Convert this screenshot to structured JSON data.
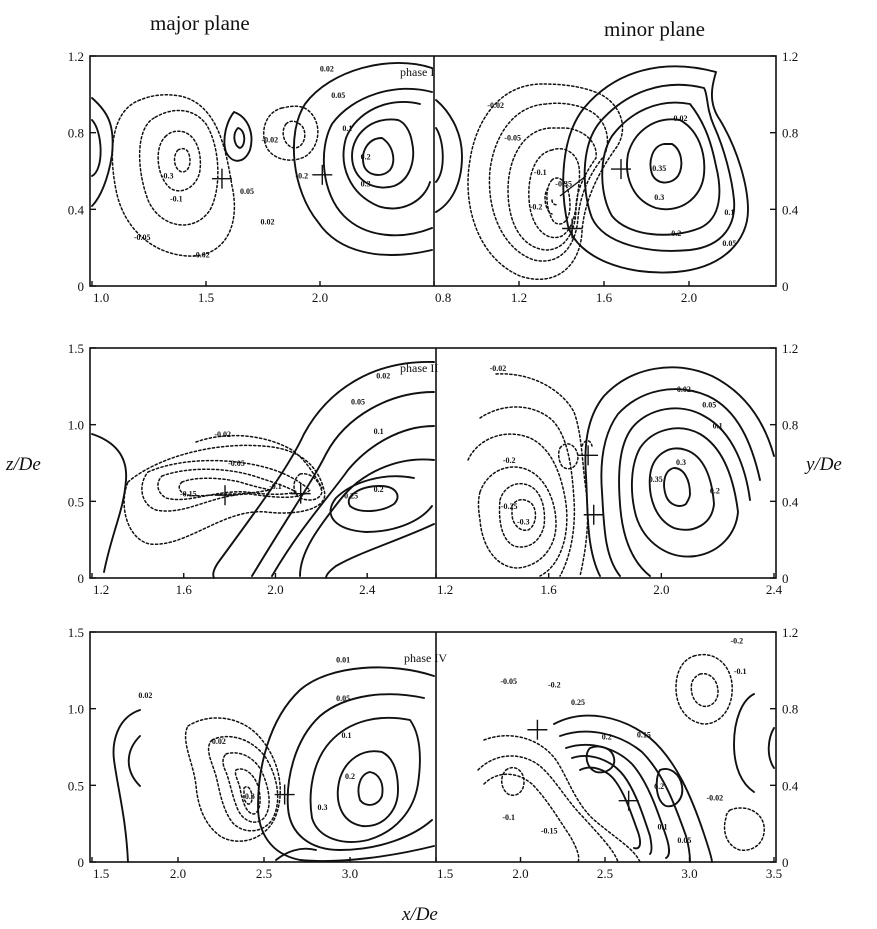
{
  "column_titles": {
    "left": "major plane",
    "right": "minor plane"
  },
  "axis_labels": {
    "x": "x/De",
    "z": "z/De",
    "y": "y/De"
  },
  "chart_data": [
    {
      "type": "contour",
      "panel": "phase I",
      "title": "phase I",
      "major": {
        "xlabel": "x/De",
        "ylabel": "z/De",
        "xlim": [
          1.0,
          2.5
        ],
        "ylim": [
          0,
          1.2
        ],
        "xticks": [
          "1.0",
          "1.5",
          "2.0"
        ],
        "yticks": [
          "0",
          "0.4",
          "0.8",
          "1.2"
        ],
        "contour_labels": [
          {
            "text": "0.02",
            "x": 2.03,
            "y": 1.12
          },
          {
            "text": "0.05",
            "x": 2.08,
            "y": 0.98
          },
          {
            "text": "0.1",
            "x": 2.12,
            "y": 0.81
          },
          {
            "text": "0.2",
            "x": 2.2,
            "y": 0.66
          },
          {
            "text": "0.3",
            "x": 2.2,
            "y": 0.52
          },
          {
            "text": "0.05",
            "x": 1.68,
            "y": 0.48
          },
          {
            "text": "0.02",
            "x": 1.77,
            "y": 0.32
          },
          {
            "text": "-0.3",
            "x": 1.33,
            "y": 0.56
          },
          {
            "text": "-0.1",
            "x": 1.37,
            "y": 0.44
          },
          {
            "text": "-0.05",
            "x": 1.22,
            "y": 0.24
          },
          {
            "text": "-0.02",
            "x": 1.48,
            "y": 0.15
          },
          {
            "text": "-0.02",
            "x": 1.78,
            "y": 0.75
          },
          {
            "text": "-0.2",
            "x": 1.92,
            "y": 0.56
          }
        ],
        "critical_points": [
          {
            "x": 1.57,
            "y": 0.56
          },
          {
            "x": 2.01,
            "y": 0.58
          }
        ]
      },
      "minor": {
        "xlabel": "x/De",
        "ylabel": "y/De",
        "xlim": [
          0.8,
          2.4
        ],
        "ylim": [
          0,
          1.2
        ],
        "xticks": [
          "0.8",
          "1.2",
          "1.6",
          "2.0"
        ],
        "yticks": [
          "0",
          "0.4",
          "0.8",
          "1.2"
        ],
        "contour_labels": [
          {
            "text": "-0.02",
            "x": 1.09,
            "y": 0.93
          },
          {
            "text": "-0.05",
            "x": 1.17,
            "y": 0.76
          },
          {
            "text": "-0.1",
            "x": 1.3,
            "y": 0.58
          },
          {
            "text": "-0.35",
            "x": 1.41,
            "y": 0.52
          },
          {
            "text": "-0.2",
            "x": 1.28,
            "y": 0.4
          },
          {
            "text": "0.02",
            "x": 1.96,
            "y": 0.86
          },
          {
            "text": "0.35",
            "x": 1.86,
            "y": 0.6
          },
          {
            "text": "0.3",
            "x": 1.86,
            "y": 0.45
          },
          {
            "text": "0.1",
            "x": 2.19,
            "y": 0.37
          },
          {
            "text": "0.2",
            "x": 1.94,
            "y": 0.26
          },
          {
            "text": "0.05",
            "x": 2.19,
            "y": 0.21
          }
        ],
        "critical_points": [
          {
            "x": 1.68,
            "y": 0.61
          },
          {
            "x": 1.45,
            "y": 0.3
          }
        ]
      }
    },
    {
      "type": "contour",
      "panel": "phase II",
      "title": "phase II",
      "major": {
        "xlabel": "x/De",
        "ylabel": "z/De",
        "xlim": [
          1.2,
          2.7
        ],
        "ylim": [
          0,
          1.5
        ],
        "xticks": [
          "1.2",
          "1.6",
          "2.0",
          "2.4"
        ],
        "yticks": [
          "0",
          "0.5",
          "1.0",
          "1.5"
        ],
        "contour_labels": [
          {
            "text": "0.02",
            "x": 2.47,
            "y": 1.3
          },
          {
            "text": "0.05",
            "x": 2.36,
            "y": 1.13
          },
          {
            "text": "0.1",
            "x": 2.45,
            "y": 0.94
          },
          {
            "text": "0.2",
            "x": 2.45,
            "y": 0.56
          },
          {
            "text": "0.25",
            "x": 2.33,
            "y": 0.52
          },
          {
            "text": "-0.02",
            "x": 1.77,
            "y": 0.92
          },
          {
            "text": "-0.05",
            "x": 1.83,
            "y": 0.73
          },
          {
            "text": "-0.1",
            "x": 2.0,
            "y": 0.58
          },
          {
            "text": "-0.15",
            "x": 1.62,
            "y": 0.53
          }
        ],
        "critical_points": [
          {
            "x": 1.78,
            "y": 0.54
          },
          {
            "x": 2.11,
            "y": 0.55
          }
        ]
      },
      "minor": {
        "xlabel": "x/De",
        "ylabel": "y/De",
        "xlim": [
          1.2,
          2.4
        ],
        "ylim": [
          0,
          1.2
        ],
        "xticks": [
          "1.2",
          "1.6",
          "2.0",
          "2.4"
        ],
        "yticks": [
          "0",
          "0.4",
          "0.8",
          "1.2"
        ],
        "contour_labels": [
          {
            "text": "-0.02",
            "x": 1.42,
            "y": 1.08
          },
          {
            "text": "0.02",
            "x": 2.08,
            "y": 0.97
          },
          {
            "text": "0.05",
            "x": 2.17,
            "y": 0.89
          },
          {
            "text": "0.1",
            "x": 2.2,
            "y": 0.78
          },
          {
            "text": "-0.2",
            "x": 1.46,
            "y": 0.6
          },
          {
            "text": "0.35",
            "x": 1.98,
            "y": 0.5
          },
          {
            "text": "0.3",
            "x": 2.07,
            "y": 0.59
          },
          {
            "text": "0.2",
            "x": 2.19,
            "y": 0.44
          },
          {
            "text": "-0.25",
            "x": 1.46,
            "y": 0.36
          },
          {
            "text": "-0.3",
            "x": 1.51,
            "y": 0.28
          }
        ],
        "critical_points": [
          {
            "x": 1.74,
            "y": 0.64
          },
          {
            "x": 1.76,
            "y": 0.33
          }
        ]
      }
    },
    {
      "type": "contour",
      "panel": "phase IV",
      "title": "phase IV",
      "major": {
        "xlabel": "x/De",
        "ylabel": "z/De",
        "xlim": [
          1.5,
          3.5
        ],
        "ylim": [
          0,
          1.5
        ],
        "xticks": [
          "1.5",
          "2.0",
          "2.5",
          "3.0"
        ],
        "yticks": [
          "0",
          "0.5",
          "1.0",
          "1.5"
        ],
        "contour_labels": [
          {
            "text": "0.02",
            "x": 1.81,
            "y": 1.07
          },
          {
            "text": "0.01",
            "x": 2.96,
            "y": 1.3
          },
          {
            "text": "0.05",
            "x": 2.96,
            "y": 1.05
          },
          {
            "text": "0.1",
            "x": 2.98,
            "y": 0.81
          },
          {
            "text": "-0.02",
            "x": 2.23,
            "y": 0.77
          },
          {
            "text": "0.2",
            "x": 3.0,
            "y": 0.54
          },
          {
            "text": "-0.3",
            "x": 2.41,
            "y": 0.41
          },
          {
            "text": "0.3",
            "x": 2.84,
            "y": 0.34
          }
        ],
        "critical_points": [
          {
            "x": 2.62,
            "y": 0.44
          }
        ]
      },
      "minor": {
        "xlabel": "x/De",
        "ylabel": "y/De",
        "xlim": [
          1.5,
          3.5
        ],
        "ylim": [
          0,
          1.2
        ],
        "xticks": [
          "1.5",
          "2.0",
          "2.5",
          "3.0",
          "3.5"
        ],
        "yticks": [
          "0",
          "0.4",
          "0.8",
          "1.2"
        ],
        "contour_labels": [
          {
            "text": "-0.2",
            "x": 3.28,
            "y": 1.14
          },
          {
            "text": "-0.1",
            "x": 3.3,
            "y": 0.98
          },
          {
            "text": "-0.05",
            "x": 1.93,
            "y": 0.93
          },
          {
            "text": "-0.2",
            "x": 2.2,
            "y": 0.91
          },
          {
            "text": "0.25",
            "x": 2.34,
            "y": 0.82
          },
          {
            "text": "0.2",
            "x": 2.51,
            "y": 0.64
          },
          {
            "text": "0.15",
            "x": 2.73,
            "y": 0.65
          },
          {
            "text": "0.2",
            "x": 2.82,
            "y": 0.38
          },
          {
            "text": "-0.02",
            "x": 3.15,
            "y": 0.32
          },
          {
            "text": "-0.1",
            "x": 1.93,
            "y": 0.22
          },
          {
            "text": "-0.15",
            "x": 2.17,
            "y": 0.15
          },
          {
            "text": "0.1",
            "x": 2.84,
            "y": 0.17
          },
          {
            "text": "0.05",
            "x": 2.97,
            "y": 0.1
          }
        ],
        "critical_points": [
          {
            "x": 2.1,
            "y": 0.69
          },
          {
            "x": 2.64,
            "y": 0.32
          }
        ]
      }
    }
  ]
}
